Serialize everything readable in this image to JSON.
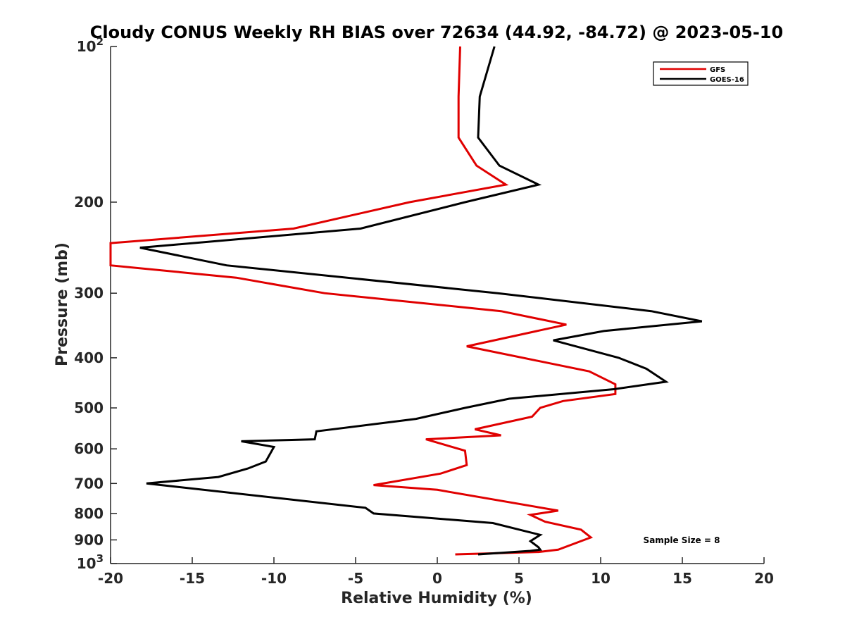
{
  "chart_data": {
    "type": "line",
    "title": "Cloudy CONUS Weekly RH BIAS over 72634 (44.92, -84.72) @ 2023-05-10",
    "xlabel": "Relative Humidity (%)",
    "ylabel": "Pressure (mb)",
    "xlim": [
      -20,
      20
    ],
    "ylim": [
      100,
      1000
    ],
    "y_scale": "log",
    "y_reversed": true,
    "grid": false,
    "legend_position": "top-right",
    "x_ticks": [
      -20,
      -15,
      -10,
      -5,
      0,
      5,
      10,
      15,
      20
    ],
    "x_tick_labels": [
      "-20",
      "-15",
      "-10",
      "-5",
      "0",
      "5",
      "10",
      "15",
      "20"
    ],
    "y_ticks": [
      100,
      200,
      300,
      400,
      500,
      600,
      700,
      800,
      900,
      1000
    ],
    "y_tick_labels": [
      {
        "base": "10",
        "exp": "2"
      },
      {
        "base": "200",
        "exp": ""
      },
      {
        "base": "300",
        "exp": ""
      },
      {
        "base": "400",
        "exp": ""
      },
      {
        "base": "500",
        "exp": ""
      },
      {
        "base": "600",
        "exp": ""
      },
      {
        "base": "700",
        "exp": ""
      },
      {
        "base": "800",
        "exp": ""
      },
      {
        "base": "900",
        "exp": ""
      },
      {
        "base": "10",
        "exp": "3"
      }
    ],
    "annotation": "Sample Size = 8",
    "series": [
      {
        "name": "GFS",
        "color": "#e00000",
        "points": [
          {
            "x": 1.4,
            "y": 100
          },
          {
            "x": 1.3,
            "y": 125
          },
          {
            "x": 1.3,
            "y": 150
          },
          {
            "x": 2.4,
            "y": 170
          },
          {
            "x": 4.2,
            "y": 185
          },
          {
            "x": -1.7,
            "y": 200
          },
          {
            "x": -8.8,
            "y": 225
          },
          {
            "x": -20,
            "y": 240
          },
          {
            "x": -20,
            "y": 265
          },
          {
            "x": -12.3,
            "y": 280
          },
          {
            "x": -6.9,
            "y": 300
          },
          {
            "x": 3.9,
            "y": 325
          },
          {
            "x": 7.9,
            "y": 345
          },
          {
            "x": 1.8,
            "y": 380
          },
          {
            "x": 9.3,
            "y": 425
          },
          {
            "x": 10.9,
            "y": 450
          },
          {
            "x": 10.9,
            "y": 470
          },
          {
            "x": 7.7,
            "y": 485
          },
          {
            "x": 6.3,
            "y": 500
          },
          {
            "x": 5.8,
            "y": 520
          },
          {
            "x": 2.3,
            "y": 550
          },
          {
            "x": 3.9,
            "y": 565
          },
          {
            "x": -0.7,
            "y": 575
          },
          {
            "x": 1.7,
            "y": 605
          },
          {
            "x": 1.8,
            "y": 645
          },
          {
            "x": 0.2,
            "y": 670
          },
          {
            "x": -3.9,
            "y": 705
          },
          {
            "x": 0,
            "y": 720
          },
          {
            "x": 7.4,
            "y": 790
          },
          {
            "x": 5.7,
            "y": 805
          },
          {
            "x": 6.6,
            "y": 830
          },
          {
            "x": 8.8,
            "y": 860
          },
          {
            "x": 9.4,
            "y": 890
          },
          {
            "x": 9.0,
            "y": 900
          },
          {
            "x": 7.4,
            "y": 940
          },
          {
            "x": 6.2,
            "y": 950
          },
          {
            "x": 1.1,
            "y": 960
          }
        ]
      },
      {
        "name": "GOES-16",
        "color": "#000000",
        "points": [
          {
            "x": 3.5,
            "y": 100
          },
          {
            "x": 2.6,
            "y": 125
          },
          {
            "x": 2.5,
            "y": 150
          },
          {
            "x": 3.8,
            "y": 170
          },
          {
            "x": 6.2,
            "y": 185
          },
          {
            "x": 1.7,
            "y": 200
          },
          {
            "x": -4.7,
            "y": 225
          },
          {
            "x": -18.2,
            "y": 245
          },
          {
            "x": -12.9,
            "y": 265
          },
          {
            "x": 3.7,
            "y": 300
          },
          {
            "x": 13.1,
            "y": 325
          },
          {
            "x": 16.2,
            "y": 340
          },
          {
            "x": 10.2,
            "y": 355
          },
          {
            "x": 7.1,
            "y": 370
          },
          {
            "x": 11.1,
            "y": 400
          },
          {
            "x": 12.8,
            "y": 420
          },
          {
            "x": 14.0,
            "y": 445
          },
          {
            "x": 10.8,
            "y": 460
          },
          {
            "x": 4.4,
            "y": 480
          },
          {
            "x": 1.7,
            "y": 500
          },
          {
            "x": -1.3,
            "y": 525
          },
          {
            "x": -7.4,
            "y": 555
          },
          {
            "x": -7.5,
            "y": 575
          },
          {
            "x": -12.0,
            "y": 580
          },
          {
            "x": -10.0,
            "y": 595
          },
          {
            "x": -10.5,
            "y": 635
          },
          {
            "x": -11.6,
            "y": 655
          },
          {
            "x": -13.4,
            "y": 680
          },
          {
            "x": -17.8,
            "y": 700
          },
          {
            "x": -4.4,
            "y": 780
          },
          {
            "x": -3.9,
            "y": 800
          },
          {
            "x": 3.4,
            "y": 835
          },
          {
            "x": 6.3,
            "y": 880
          },
          {
            "x": 5.7,
            "y": 905
          },
          {
            "x": 6.2,
            "y": 930
          },
          {
            "x": 6.3,
            "y": 940
          },
          {
            "x": 5.7,
            "y": 945
          },
          {
            "x": 2.5,
            "y": 960
          }
        ]
      }
    ]
  }
}
